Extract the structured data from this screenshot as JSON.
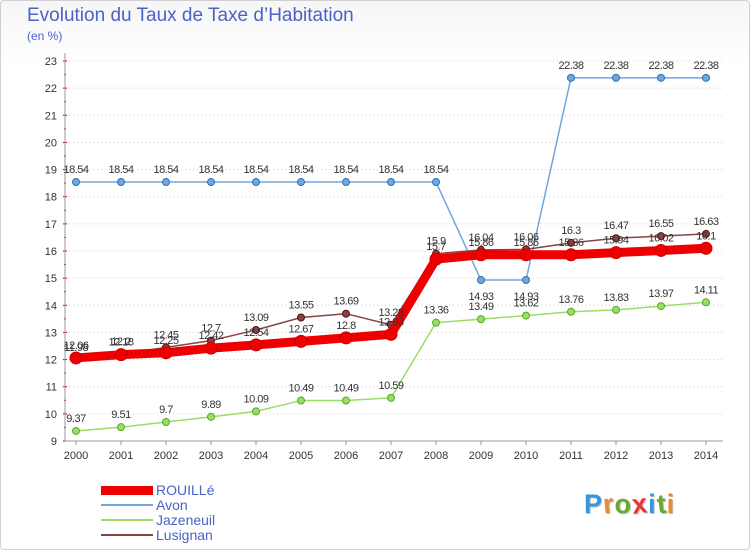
{
  "title": "Evolution du Taux de Taxe d’Habitation",
  "subtitle": "(en %)",
  "logo_text": "Proxiti",
  "chart_data": {
    "type": "line",
    "x": [
      "2000",
      "2001",
      "2002",
      "2003",
      "2004",
      "2005",
      "2006",
      "2007",
      "2008",
      "2009",
      "2010",
      "2011",
      "2012",
      "2013",
      "2014"
    ],
    "ylim": [
      9,
      23
    ],
    "yticks": [
      9,
      10,
      11,
      12,
      13,
      14,
      15,
      16,
      17,
      18,
      19,
      20,
      21,
      22,
      23
    ],
    "legend_position": "bottom-left",
    "grid": "horizontal-dotted",
    "series": [
      {
        "name": "ROUILLé",
        "color": "#ee0000",
        "values": [
          12.06,
          12.18,
          12.25,
          12.42,
          12.54,
          12.67,
          12.8,
          12.93,
          15.7,
          15.86,
          15.86,
          15.86,
          15.94,
          16.02,
          16.1
        ],
        "labels": [
          "12.06",
          "12.18",
          "12.25",
          "12.42",
          "12.54",
          "12.67",
          "12.8",
          "12.93",
          "15.7",
          "15.86",
          "15.86",
          "15.86",
          "15.94",
          "16.02",
          "16.1"
        ]
      },
      {
        "name": "Avon",
        "color": "#6fa8dc",
        "values": [
          18.54,
          18.54,
          18.54,
          18.54,
          18.54,
          18.54,
          18.54,
          18.54,
          18.54,
          14.93,
          14.93,
          22.38,
          22.38,
          22.38,
          22.38
        ],
        "labels": [
          "18.54",
          "18.54",
          "18.54",
          "18.54",
          "18.54",
          "18.54",
          "18.54",
          "18.54",
          "18.54",
          "14.93",
          "14.93",
          "22.38",
          "22.38",
          "22.38",
          "22.38"
        ]
      },
      {
        "name": "Jazeneuil",
        "color": "#99dd66",
        "values": [
          9.37,
          9.51,
          9.7,
          9.89,
          10.09,
          10.49,
          10.49,
          10.59,
          13.36,
          13.49,
          13.62,
          13.76,
          13.83,
          13.97,
          14.11
        ],
        "labels": [
          "9.37",
          "9.51",
          "9.7",
          "9.89",
          "10.09",
          "10.49",
          "10.49",
          "10.59",
          "13.36",
          "13.49",
          "13.62",
          "13.76",
          "13.83",
          "13.97",
          "14.11"
        ]
      },
      {
        "name": "Lusignan",
        "color": "#884444",
        "values": [
          11.98,
          12.2,
          12.45,
          12.7,
          13.09,
          13.55,
          13.69,
          13.28,
          15.9,
          16.04,
          16.06,
          16.3,
          16.47,
          16.55,
          16.63
        ],
        "labels": [
          "11.98",
          "12.2",
          "12.45",
          "12.7",
          "13.09",
          "13.55",
          "13.69",
          "13.28",
          "15.9",
          "16.04",
          "16.06",
          "16.3",
          "16.47",
          "16.55",
          "16.63"
        ]
      }
    ]
  }
}
